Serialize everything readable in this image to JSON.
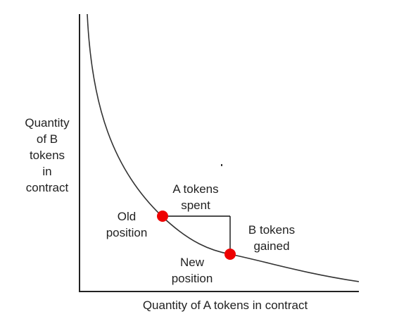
{
  "diagram": {
    "y_axis_label": "Quantity\nof B\ntokens\nin\ncontract",
    "x_axis_label": "Quantity of A tokens in contract",
    "old_position_label": "Old\nposition",
    "new_position_label": "New\nposition",
    "a_tokens_label": "A tokens\nspent",
    "b_tokens_label": "B tokens\ngained"
  },
  "colors": {
    "axis": "#222222",
    "curve": "#333333",
    "points": "#ee0000",
    "step_lines": "#111111",
    "text": "#222222"
  }
}
